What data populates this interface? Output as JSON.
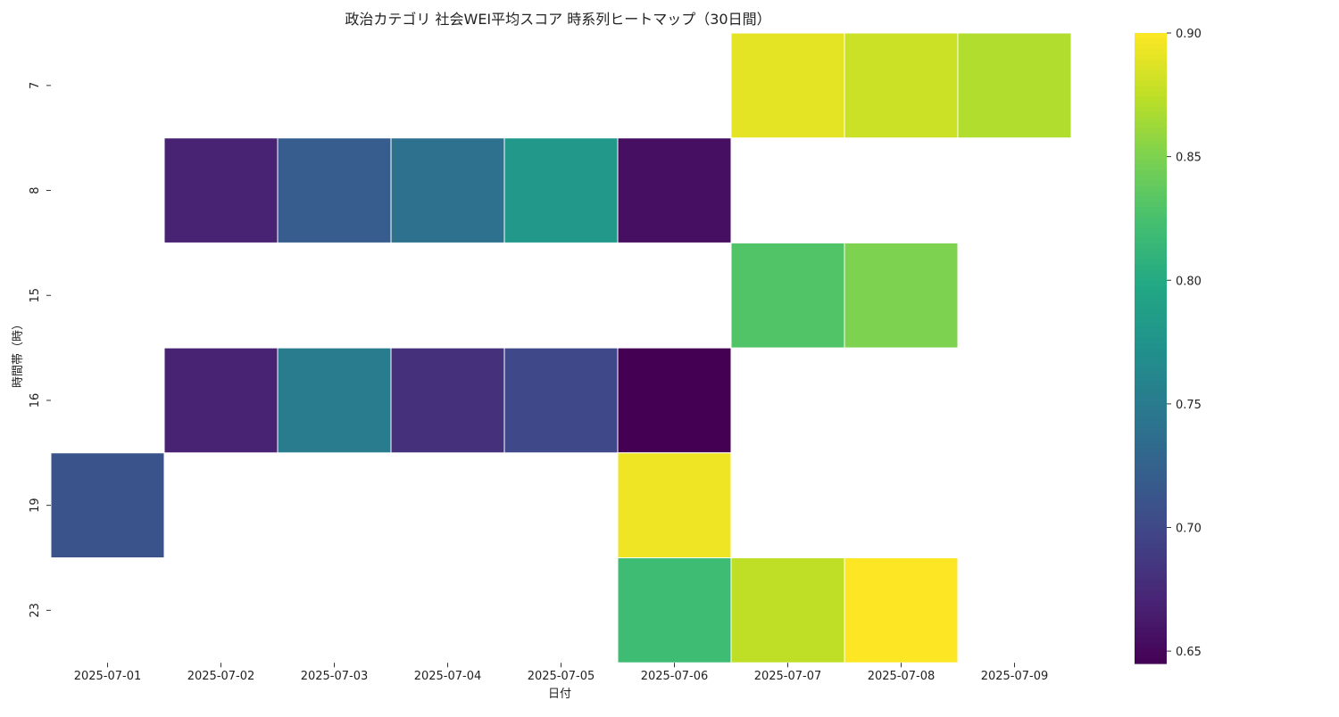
{
  "chart_data": {
    "type": "heatmap",
    "title": "政治カテゴリ 社会WEI平均スコア 時系列ヒートマップ（30日間）",
    "xlabel": "日付",
    "ylabel": "時間帯（時）",
    "x_categories": [
      "2025-07-01",
      "2025-07-02",
      "2025-07-03",
      "2025-07-04",
      "2025-07-05",
      "2025-07-06",
      "2025-07-07",
      "2025-07-08",
      "2025-07-09"
    ],
    "y_categories": [
      "7",
      "8",
      "15",
      "16",
      "19",
      "23"
    ],
    "values": [
      [
        null,
        null,
        null,
        null,
        null,
        null,
        0.89,
        0.88,
        0.87
      ],
      [
        null,
        0.67,
        0.72,
        0.74,
        0.78,
        0.655,
        null,
        null,
        null
      ],
      [
        null,
        null,
        null,
        null,
        null,
        null,
        0.83,
        0.85,
        null
      ],
      [
        null,
        0.67,
        0.75,
        0.68,
        0.7,
        0.645,
        null,
        null,
        null
      ],
      [
        0.71,
        null,
        null,
        null,
        null,
        0.895,
        null,
        null,
        null
      ],
      [
        null,
        null,
        null,
        null,
        null,
        0.82,
        0.875,
        0.9,
        null
      ]
    ],
    "colorscale": "viridis",
    "colorbar": {
      "range": [
        0.645,
        0.9
      ],
      "ticks": [
        "0.65",
        "0.70",
        "0.75",
        "0.80",
        "0.85",
        "0.90"
      ],
      "position": "right"
    },
    "grid": false,
    "missing_color": "#ffffff"
  }
}
